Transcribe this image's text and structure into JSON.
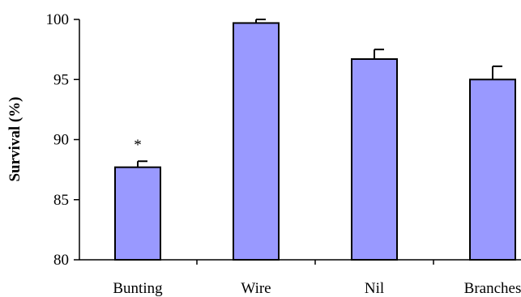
{
  "chart_data": {
    "type": "bar",
    "title": "",
    "xlabel": "",
    "ylabel": "Survival (%)",
    "ylim": [
      80,
      100
    ],
    "yticks": [
      80,
      85,
      90,
      95,
      100
    ],
    "categories": [
      "Bunting",
      "Wire",
      "Nil",
      "Branches"
    ],
    "values": [
      87.7,
      99.7,
      96.7,
      95.0
    ],
    "errors": [
      0.5,
      0.3,
      0.8,
      1.1
    ],
    "annotations": [
      "*",
      "",
      "",
      ""
    ],
    "grid": false,
    "legend": "none",
    "colors": {
      "bar_fill": "#9999ff",
      "bar_stroke": "#000000",
      "axis": "#000000"
    }
  }
}
